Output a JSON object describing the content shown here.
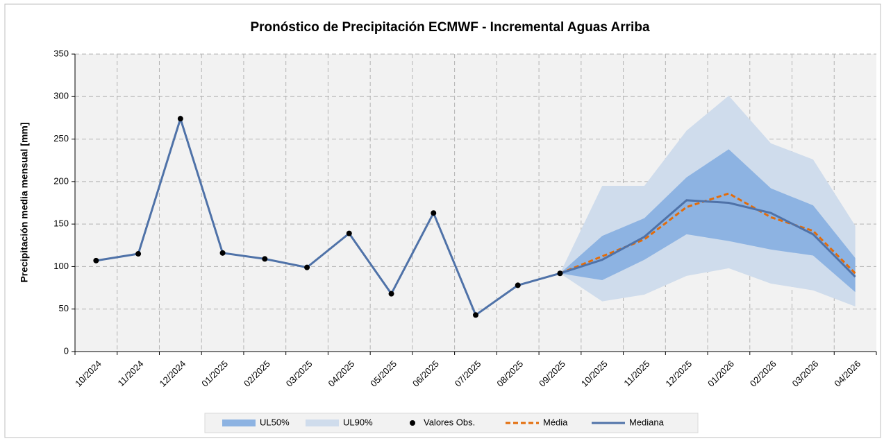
{
  "chart_data": {
    "type": "line",
    "title": "Pronóstico de Precipitación ECMWF - Incremental Aguas Arriba",
    "y_label": "Precipitación media mensual [mm]",
    "categories": [
      "10/2024",
      "11/2024",
      "12/2024",
      "01/2025",
      "02/2025",
      "03/2025",
      "04/2025",
      "05/2025",
      "06/2025",
      "07/2025",
      "08/2025",
      "09/2025",
      "10/2025",
      "11/2025",
      "12/2025",
      "01/2026",
      "02/2026",
      "03/2026",
      "04/2026"
    ],
    "ylim": [
      0,
      350
    ],
    "yticks": [
      0,
      50,
      100,
      150,
      200,
      250,
      300,
      350
    ],
    "grid": true,
    "legend": "bottom",
    "bands": [
      {
        "name": "UL50%",
        "color": "#8db3e2",
        "lower": [
          null,
          null,
          null,
          null,
          null,
          null,
          null,
          null,
          null,
          null,
          null,
          92,
          84,
          108,
          138,
          130,
          120,
          113,
          70
        ],
        "upper": [
          null,
          null,
          null,
          null,
          null,
          null,
          null,
          null,
          null,
          null,
          null,
          92,
          136,
          157,
          205,
          238,
          192,
          172,
          110
        ]
      },
      {
        "name": "UL90%",
        "color": "#cfdcec",
        "lower": [
          null,
          null,
          null,
          null,
          null,
          null,
          null,
          null,
          null,
          null,
          null,
          92,
          59,
          67,
          89,
          98,
          80,
          72,
          53
        ],
        "upper": [
          null,
          null,
          null,
          null,
          null,
          null,
          null,
          null,
          null,
          null,
          null,
          92,
          195,
          195,
          260,
          301,
          245,
          226,
          148
        ]
      }
    ],
    "series": [
      {
        "name": "Valores Obs.",
        "style": "markers",
        "color": "#000000",
        "values": [
          107,
          115,
          274,
          116,
          109,
          99,
          139,
          68,
          163,
          43,
          78,
          92,
          null,
          null,
          null,
          null,
          null,
          null,
          null
        ]
      },
      {
        "name": "Média",
        "style": "dashed",
        "color": "#e36c09",
        "values": [
          null,
          null,
          null,
          null,
          null,
          null,
          null,
          null,
          null,
          null,
          null,
          92,
          112,
          132,
          170,
          186,
          158,
          142,
          92
        ]
      },
      {
        "name": "Mediana",
        "style": "solid",
        "color": "#4f72a8",
        "values": [
          107,
          115,
          274,
          116,
          109,
          99,
          139,
          68,
          163,
          43,
          78,
          92,
          108,
          135,
          178,
          175,
          163,
          138,
          88
        ]
      }
    ]
  }
}
